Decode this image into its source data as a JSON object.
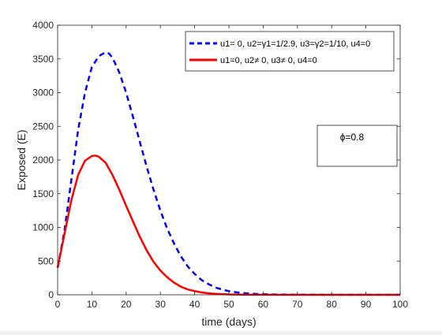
{
  "chart_data": {
    "type": "line",
    "xlabel": "time (days)",
    "ylabel": "Exposed (E)",
    "xlim": [
      0,
      100
    ],
    "ylim": [
      0,
      4000
    ],
    "xticks": [
      "0",
      "10",
      "20",
      "30",
      "40",
      "50",
      "60",
      "70",
      "80",
      "90",
      "100"
    ],
    "yticks": [
      "0",
      "500",
      "1000",
      "1500",
      "2000",
      "2500",
      "3000",
      "3500",
      "4000"
    ],
    "grid": false,
    "legend_position": "top-right",
    "series": [
      {
        "name": "u1= 0, u2=γ1=1/2.9, u3=γ2=1/10, u4=0",
        "color": "#0000ff",
        "style": "dashed",
        "x": [
          0,
          2,
          4,
          6,
          8,
          10,
          12,
          14,
          15,
          16,
          18,
          20,
          22,
          24,
          26,
          28,
          30,
          32,
          34,
          36,
          38,
          40,
          42,
          44,
          46,
          48,
          50,
          52,
          55,
          58,
          61,
          65,
          70,
          75,
          80,
          90,
          100
        ],
        "y": [
          400,
          950,
          1700,
          2450,
          3000,
          3380,
          3540,
          3600,
          3580,
          3520,
          3300,
          3000,
          2640,
          2270,
          1900,
          1560,
          1250,
          980,
          760,
          570,
          420,
          310,
          220,
          160,
          110,
          78,
          55,
          38,
          22,
          13,
          8,
          4,
          2,
          1,
          0,
          0,
          0
        ]
      },
      {
        "name": "u1=0, u2≠ 0, u3≠ 0, u4=0",
        "color": "#ff0000",
        "style": "solid",
        "x": [
          0,
          2,
          4,
          6,
          8,
          10,
          11,
          12,
          14,
          16,
          18,
          20,
          22,
          24,
          26,
          28,
          30,
          32,
          34,
          36,
          38,
          40,
          42,
          44,
          46,
          48,
          50,
          55,
          60,
          65,
          70,
          80,
          90,
          100
        ],
        "y": [
          400,
          900,
          1400,
          1780,
          1990,
          2060,
          2065,
          2050,
          1960,
          1780,
          1560,
          1320,
          1090,
          860,
          660,
          490,
          360,
          260,
          180,
          120,
          80,
          55,
          35,
          22,
          15,
          10,
          6,
          2,
          1,
          0,
          0,
          0,
          0,
          0
        ]
      }
    ],
    "annotation": "ϕ=0.8"
  }
}
